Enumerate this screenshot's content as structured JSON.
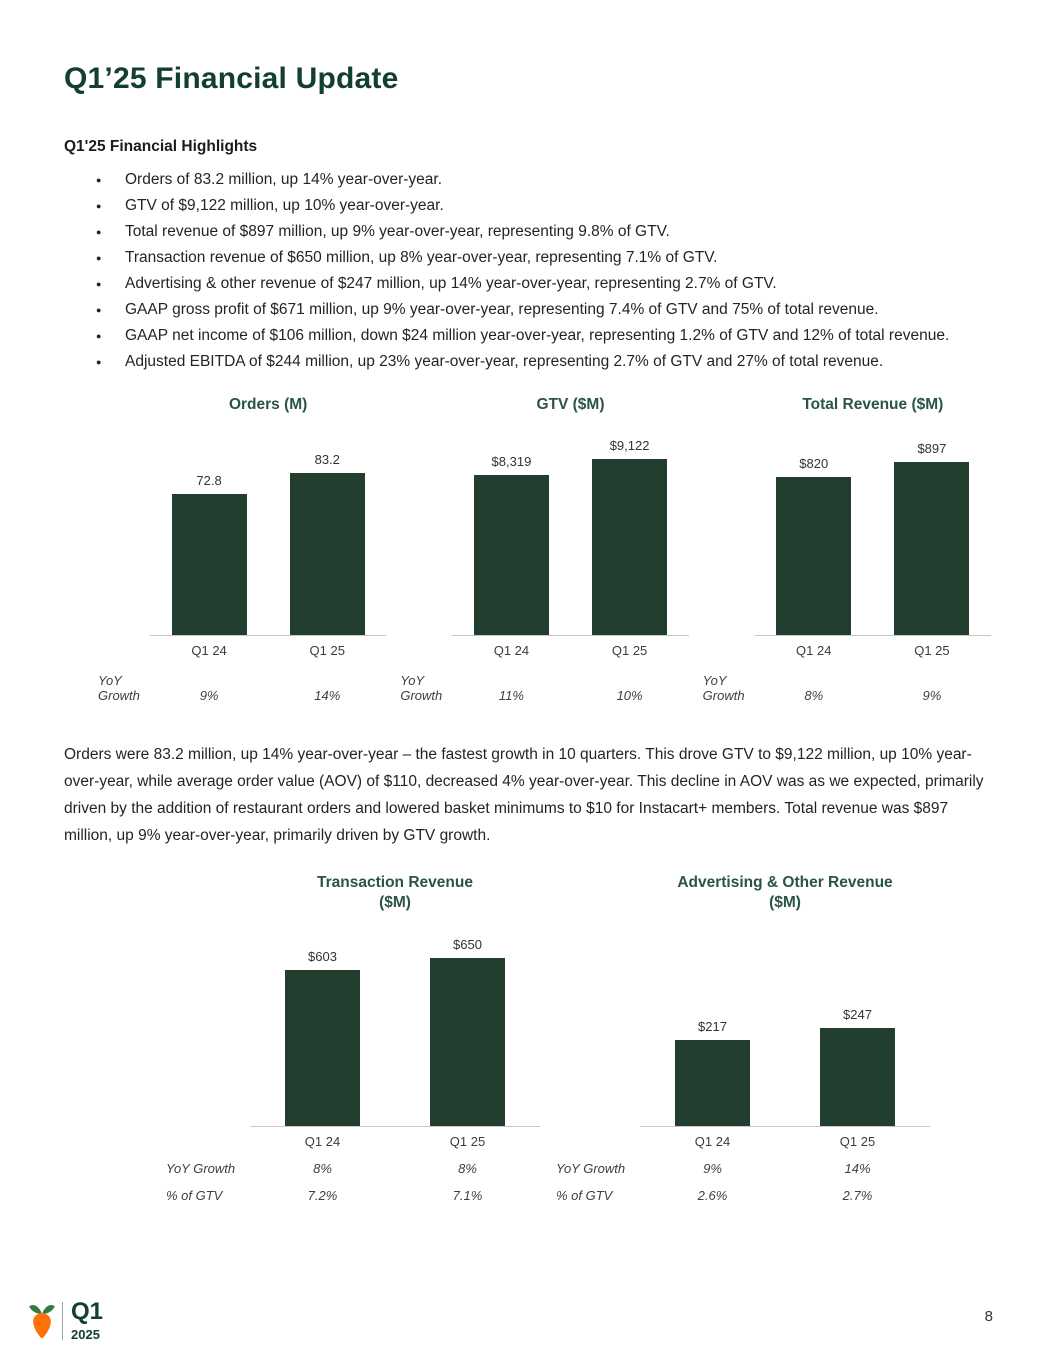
{
  "page": {
    "title": "Q1’25 Financial Update",
    "page_number": "8",
    "footer": {
      "quarter": "Q1",
      "year": "2025"
    }
  },
  "colors": {
    "title_green": "#12402d",
    "chart_title_green": "#2a5446",
    "bar_green": "#223e2e",
    "carrot_orange": "#ff7009"
  },
  "highlights": {
    "heading": "Q1'25 Financial Highlights",
    "bullets": [
      "Orders of 83.2 million, up 14% year-over-year.",
      "GTV of $9,122 million, up 10% year-over-year.",
      "Total revenue of $897 million, up 9% year-over-year, representing 9.8% of GTV.",
      "Transaction revenue of $650 million, up 8% year-over-year, representing 7.1% of GTV.",
      "Advertising & other revenue of $247 million, up 14% year-over-year, representing 2.7% of GTV.",
      "GAAP gross profit of $671 million, up 9% year-over-year, representing 7.4% of GTV and 75% of total revenue.",
      "GAAP net income of $106 million, down $24 million year-over-year, representing 1.2% of GTV and 12% of total revenue.",
      "Adjusted EBITDA of $244 million, up 23% year-over-year, representing 2.7% of GTV and 27% of total revenue."
    ]
  },
  "paragraph": "Orders were 83.2 million, up 14% year-over-year – the fastest growth in 10 quarters. This drove GTV to $9,122 million, up 10% year-over-year, while average order value (AOV) of $110, decreased 4% year-over-year. This decline in AOV was as we expected, primarily driven by the addition of restaurant orders and lowered basket minimums to $10 for Instacart+ members. Total revenue was $897 million, up 9% year-over-year, primarily driven by GTV growth.",
  "chart_data": [
    {
      "type": "bar",
      "title": "Orders (M)",
      "categories": [
        "Q1 24",
        "Q1 25"
      ],
      "values": [
        72.8,
        83.2
      ],
      "value_labels": [
        "72.8",
        "83.2"
      ],
      "ylim": [
        0,
        105
      ],
      "xlabel": "",
      "ylabel": "",
      "grid": false,
      "stats": [
        {
          "label": "YoY Growth",
          "values": [
            "9%",
            "14%"
          ]
        }
      ]
    },
    {
      "type": "bar",
      "title": "GTV ($M)",
      "categories": [
        "Q1 24",
        "Q1 25"
      ],
      "values": [
        8319,
        9122
      ],
      "value_labels": [
        "$8,319",
        "$9,122"
      ],
      "ylim": [
        0,
        10600
      ],
      "xlabel": "",
      "ylabel": "",
      "grid": false,
      "stats": [
        {
          "label": "YoY Growth",
          "values": [
            "11%",
            "10%"
          ]
        }
      ]
    },
    {
      "type": "bar",
      "title": "Total Revenue ($M)",
      "categories": [
        "Q1 24",
        "Q1 25"
      ],
      "values": [
        820,
        897
      ],
      "value_labels": [
        "$820",
        "$897"
      ],
      "ylim": [
        0,
        1060
      ],
      "xlabel": "",
      "ylabel": "",
      "grid": false,
      "stats": [
        {
          "label": "YoY Growth",
          "values": [
            "8%",
            "9%"
          ]
        }
      ]
    },
    {
      "type": "bar",
      "title": "Transaction Revenue",
      "title2": "($M)",
      "categories": [
        "Q1 24",
        "Q1 25"
      ],
      "values": [
        603,
        650
      ],
      "value_labels": [
        "$603",
        "$650"
      ],
      "ylim": [
        0,
        770
      ],
      "xlabel": "",
      "ylabel": "",
      "grid": false,
      "stats": [
        {
          "label": "YoY Growth",
          "values": [
            "8%",
            "8%"
          ]
        },
        {
          "label": "% of GTV",
          "values": [
            "7.2%",
            "7.1%"
          ]
        }
      ]
    },
    {
      "type": "bar",
      "title": "Advertising & Other  Revenue",
      "title2": "($M)",
      "categories": [
        "Q1 24",
        "Q1 25"
      ],
      "values": [
        217,
        247
      ],
      "value_labels": [
        "$217",
        "$247"
      ],
      "ylim": [
        0,
        500
      ],
      "xlabel": "",
      "ylabel": "",
      "grid": false,
      "stats": [
        {
          "label": "YoY Growth",
          "values": [
            "9%",
            "14%"
          ]
        },
        {
          "label": "% of GTV",
          "values": [
            "2.6%",
            "2.7%"
          ]
        }
      ]
    }
  ]
}
